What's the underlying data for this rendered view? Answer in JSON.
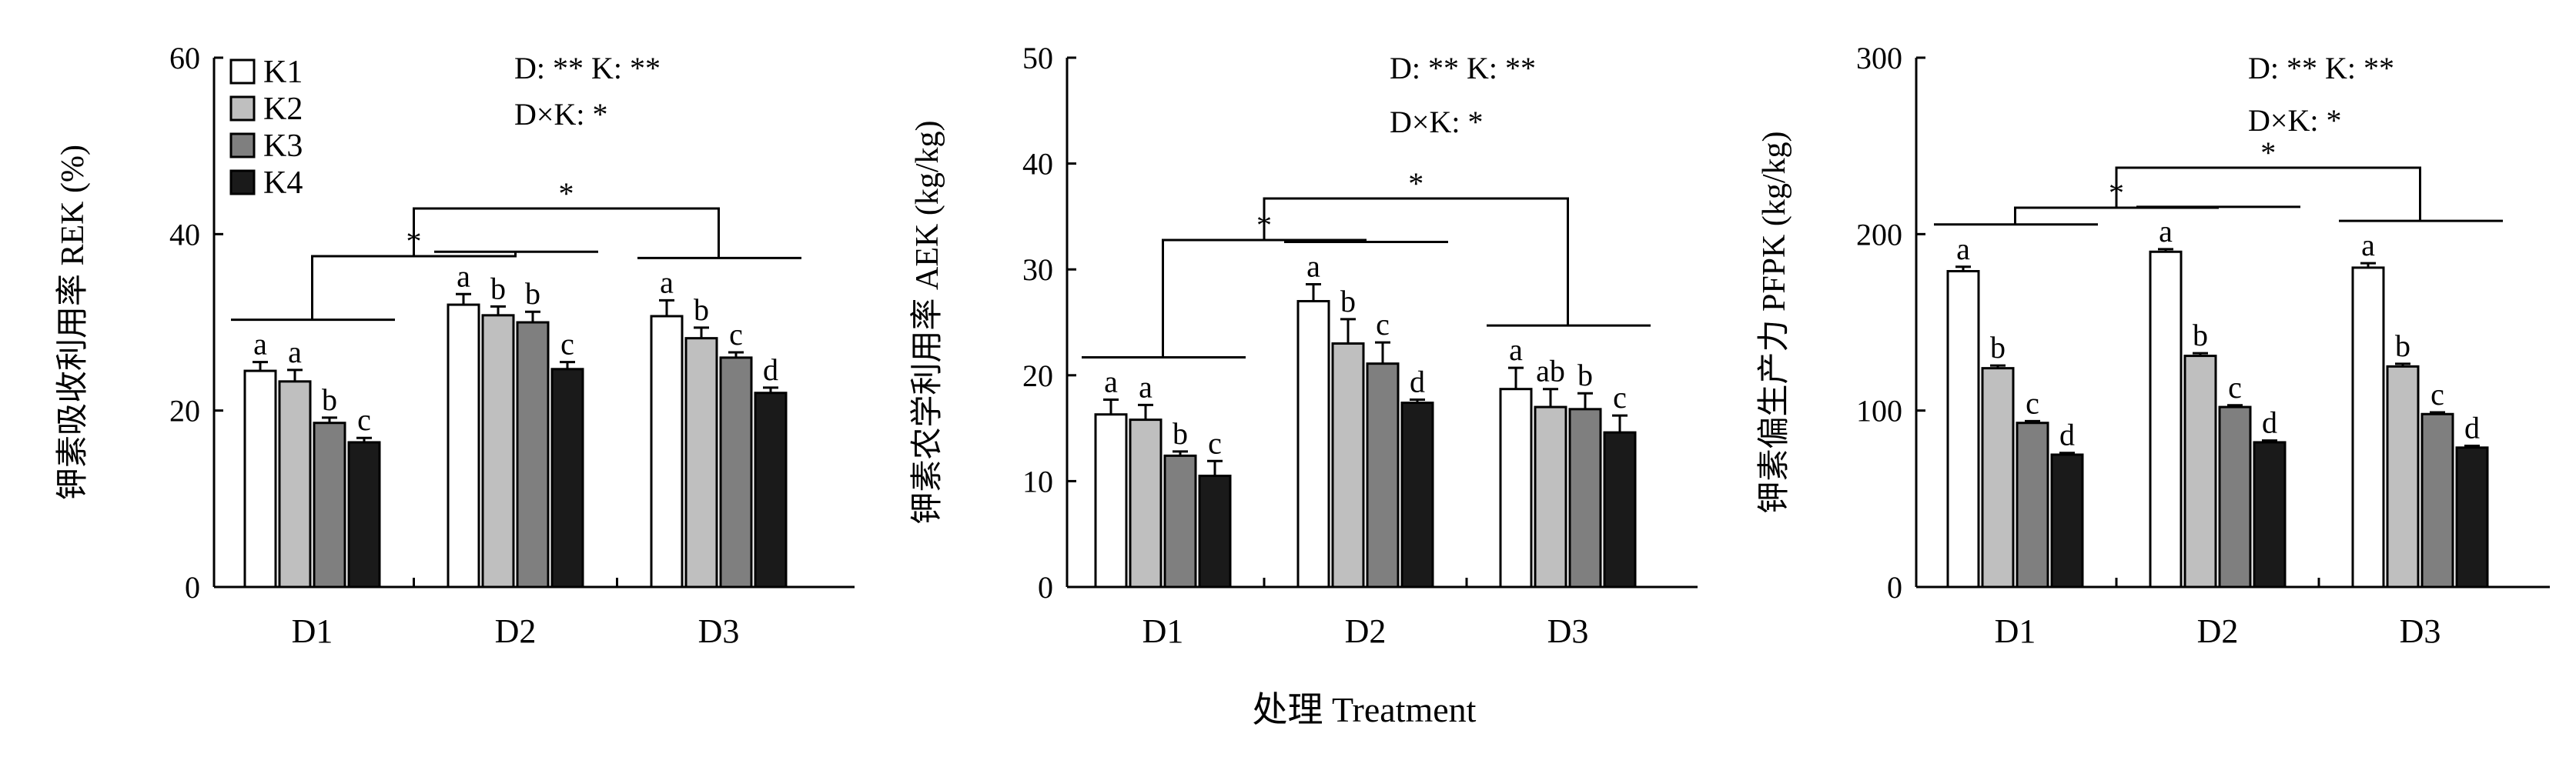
{
  "figure": {
    "xlabel": "处理 Treatment",
    "legend": [
      "K1",
      "K2",
      "K3",
      "K4"
    ],
    "series_colors": [
      "#ffffff",
      "#bfbfbf",
      "#7f7f7f",
      "#1a1a1a"
    ],
    "bar_stroke": "#000000"
  },
  "chart_data": [
    {
      "type": "bar",
      "title": "",
      "xlabel": "",
      "ylabel": "钾素吸收利用率 REK (%)",
      "ylim": [
        0,
        60
      ],
      "yticks": [
        0,
        20,
        40,
        60
      ],
      "categories": [
        "D1",
        "D2",
        "D3"
      ],
      "series": [
        {
          "name": "K1",
          "values": [
            24.5,
            32.0,
            30.7
          ],
          "errors": [
            1.0,
            1.2,
            1.8
          ]
        },
        {
          "name": "K2",
          "values": [
            23.3,
            30.8,
            28.2
          ],
          "errors": [
            1.3,
            1.0,
            1.2
          ]
        },
        {
          "name": "K3",
          "values": [
            18.6,
            30.0,
            26.0
          ],
          "errors": [
            0.6,
            1.2,
            0.6
          ]
        },
        {
          "name": "K4",
          "values": [
            16.4,
            24.7,
            22.0
          ],
          "errors": [
            0.5,
            0.8,
            0.6
          ]
        }
      ],
      "letters": [
        [
          "a",
          "a",
          "b",
          "c"
        ],
        [
          "a",
          "b",
          "b",
          "c"
        ],
        [
          "a",
          "b",
          "c",
          "d"
        ]
      ],
      "stats_line1": "D: ** K: **",
      "stats_line2": "D×K: *",
      "sig_star": "*",
      "legend_loc": "top-left"
    },
    {
      "type": "bar",
      "title": "",
      "xlabel": "",
      "ylabel": "钾素农学利用率 AEK (kg/kg)",
      "ylim": [
        0,
        50
      ],
      "yticks": [
        0,
        10,
        20,
        30,
        40,
        50
      ],
      "categories": [
        "D1",
        "D2",
        "D3"
      ],
      "series": [
        {
          "name": "K1",
          "values": [
            16.3,
            27.0,
            18.7
          ],
          "errors": [
            1.4,
            1.6,
            2.0
          ]
        },
        {
          "name": "K2",
          "values": [
            15.8,
            23.0,
            17.0
          ],
          "errors": [
            1.4,
            2.3,
            1.7
          ]
        },
        {
          "name": "K3",
          "values": [
            12.4,
            21.1,
            16.8
          ],
          "errors": [
            0.4,
            2.0,
            1.5
          ]
        },
        {
          "name": "K4",
          "values": [
            10.5,
            17.4,
            14.6
          ],
          "errors": [
            1.4,
            0.3,
            1.6
          ]
        }
      ],
      "letters": [
        [
          "a",
          "a",
          "b",
          "c"
        ],
        [
          "a",
          "b",
          "c",
          "d"
        ],
        [
          "a",
          "ab",
          "b",
          "c"
        ]
      ],
      "stats_line1": "D: ** K: **",
      "stats_line2": "D×K: *",
      "sig_star": "*"
    },
    {
      "type": "bar",
      "title": "",
      "xlabel": "",
      "ylabel": "钾素偏生产力 PFPK (kg/kg)",
      "ylim": [
        0,
        300
      ],
      "yticks": [
        0,
        100,
        200,
        300
      ],
      "categories": [
        "D1",
        "D2",
        "D3"
      ],
      "series": [
        {
          "name": "K1",
          "values": [
            179,
            190,
            181
          ],
          "errors": [
            2.5,
            1.5,
            2.5
          ]
        },
        {
          "name": "K2",
          "values": [
            124,
            131,
            125
          ],
          "errors": [
            1.5,
            1.5,
            1.5
          ]
        },
        {
          "name": "K3",
          "values": [
            93,
            102,
            98
          ],
          "errors": [
            1.0,
            1.0,
            1.0
          ]
        },
        {
          "name": "K4",
          "values": [
            75,
            82,
            79
          ],
          "errors": [
            1.0,
            1.0,
            1.0
          ]
        }
      ],
      "letters": [
        [
          "a",
          "b",
          "c",
          "d"
        ],
        [
          "a",
          "b",
          "c",
          "d"
        ],
        [
          "a",
          "b",
          "c",
          "d"
        ]
      ],
      "stats_line1": "D: ** K: **",
      "stats_line2": "D×K: *",
      "sig_star": "*"
    }
  ]
}
